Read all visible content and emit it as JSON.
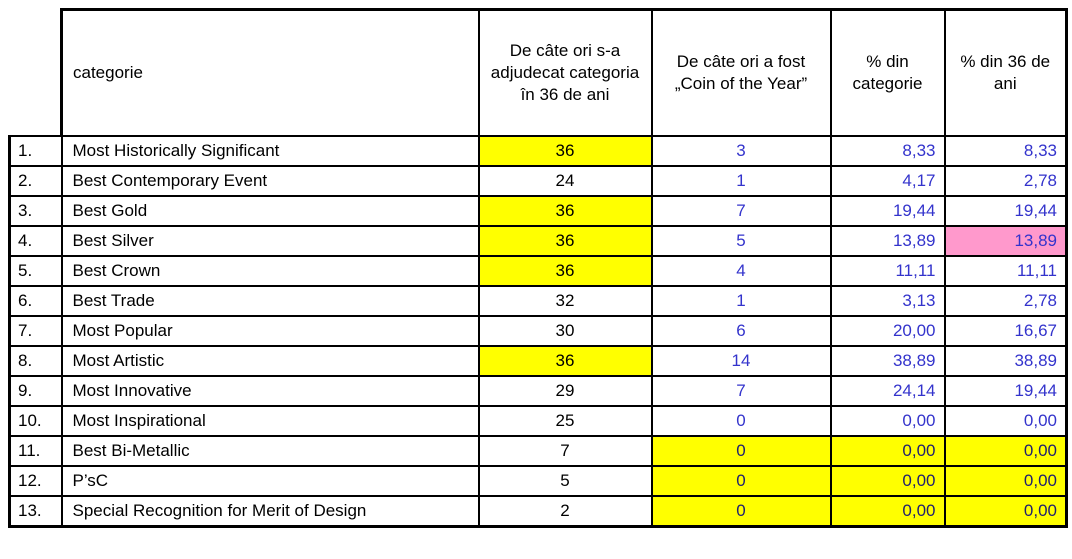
{
  "chart_data": {
    "type": "table",
    "columns": [
      "",
      "categorie",
      "De câte ori s-a adjudecat categoria în 36 de ani",
      "De câte ori a fost „Coin of the Year”",
      "% din categorie",
      "% din 36 de ani"
    ],
    "rows": [
      [
        "1.",
        "Most Historically Significant",
        "36",
        "3",
        "8,33",
        "8,33"
      ],
      [
        "2.",
        "Best Contemporary Event",
        "24",
        "1",
        "4,17",
        "2,78"
      ],
      [
        "3.",
        "Best Gold",
        "36",
        "7",
        "19,44",
        "19,44"
      ],
      [
        "4.",
        "Best Silver",
        "36",
        "5",
        "13,89",
        "13,89"
      ],
      [
        "5.",
        "Best Crown",
        "36",
        "4",
        "11,11",
        "11,11"
      ],
      [
        "6.",
        "Best Trade",
        "32",
        "1",
        "3,13",
        "2,78"
      ],
      [
        "7.",
        "Most Popular",
        "30",
        "6",
        "20,00",
        "16,67"
      ],
      [
        "8.",
        "Most Artistic",
        "36",
        "14",
        "38,89",
        "38,89"
      ],
      [
        "9.",
        "Most Innovative",
        "29",
        "7",
        "24,14",
        "19,44"
      ],
      [
        "10.",
        "Most Inspirational",
        "25",
        "0",
        "0,00",
        "0,00"
      ],
      [
        "11.",
        "Best Bi-Metallic",
        "7",
        "0",
        "0,00",
        "0,00"
      ],
      [
        "12.",
        "P’sC",
        "5",
        "0",
        "0,00",
        "0,00"
      ],
      [
        "13.",
        "Special Recognition for Merit of Design",
        "2",
        "0",
        "0,00",
        "0,00"
      ]
    ],
    "highlights": {
      "yellow_cells": [
        "r1 times-awarded",
        "r3 times-awarded",
        "r4 times-awarded",
        "r5 times-awarded",
        "r8 times-awarded",
        "r11 coty-count",
        "r11 pct-category",
        "r11 pct-36",
        "r12 coty-count",
        "r12 pct-category",
        "r12 pct-36",
        "r13 coty-count",
        "r13 pct-category",
        "r13 pct-36"
      ],
      "pink_cells": [
        "r4 pct-36"
      ]
    },
    "colors": {
      "highlight_yellow": "#FFFF00",
      "highlight_pink": "#FF99CC",
      "value_blue": "#3333CC",
      "yellow_cell_value_navy": "#1F1F70",
      "grid_black": "#000000"
    },
    "layout": "grid table, black borders, header row ~4x body row height, no header above row-number column"
  }
}
